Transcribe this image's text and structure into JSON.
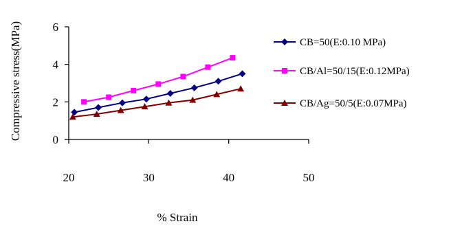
{
  "chart_data": {
    "type": "line",
    "xlabel": "% Strain",
    "ylabel": "Compressive stress(MPa)",
    "xlim": [
      20,
      50
    ],
    "ylim": [
      0,
      6
    ],
    "xticks": [
      "20",
      "30",
      "40",
      "50"
    ],
    "yticks": [
      "0",
      "2",
      "4",
      "6"
    ],
    "grid": false,
    "legend_position": "right",
    "series": [
      {
        "name": "CB=50(E:0.10 MPa)",
        "color": "#000080",
        "marker": "diamond",
        "x": [
          20.7,
          23.7,
          26.7,
          29.7,
          32.7,
          35.7,
          38.7,
          41.7
        ],
        "y": [
          1.45,
          1.7,
          1.95,
          2.15,
          2.45,
          2.75,
          3.1,
          3.5
        ]
      },
      {
        "name": "CB/Al=50/15(E:0.12MPa)",
        "color": "#ff00ff",
        "marker": "square",
        "x": [
          21.9,
          25.0,
          28.1,
          31.2,
          34.3,
          37.4,
          40.5
        ],
        "y": [
          2.0,
          2.25,
          2.6,
          2.95,
          3.35,
          3.85,
          4.35
        ]
      },
      {
        "name": "CB/Ag=50/5(E:0.07MPa)",
        "color": "#800000",
        "marker": "triangle",
        "x": [
          20.5,
          23.5,
          26.5,
          29.5,
          32.5,
          35.5,
          38.5,
          41.5
        ],
        "y": [
          1.2,
          1.35,
          1.55,
          1.75,
          1.95,
          2.1,
          2.4,
          2.7
        ]
      }
    ]
  }
}
